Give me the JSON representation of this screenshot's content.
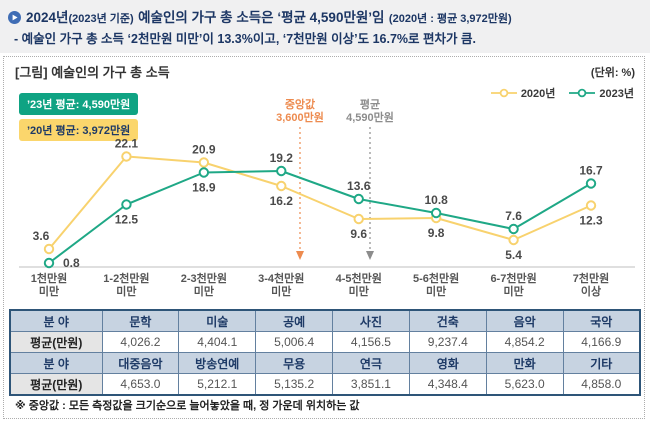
{
  "header": {
    "line1_lead": "2024년",
    "line1_sub": "(2023년 기준)",
    "line1_main": "예술인의 가구 총 소득은 ‘평균 4,590만원’임",
    "line1_paren": "(2020년 : 평균 3,972만원)",
    "line2": "- 예술인 가구 총 소득 ‘2천만원 미만’이 13.3%이고, ‘7천만원 이상’도 16.7%로 편차가 큼."
  },
  "figure": {
    "title": "[그림] 예술인의 가구 총 소득",
    "unit": "(단위: %)",
    "badge_2023": "’23년 평균: 4,590만원",
    "badge_2020": "’20년 평균: 3,972만원"
  },
  "chart_data": {
    "type": "line",
    "title": "[그림] 예술인의 가구 총 소득",
    "unit": "%",
    "xlabel": "",
    "ylabel": "",
    "ylim": [
      0,
      25
    ],
    "grid": false,
    "legend_position": "top-right",
    "categories": [
      "1천만원 미만",
      "1-2천만원 미만",
      "2-3천만원 미만",
      "3-4천만원 미만",
      "4-5천만원 미만",
      "5-6천만원 미만",
      "6-7천만원 미만",
      "7천만원 이상"
    ],
    "series": [
      {
        "name": "2020년",
        "color": "#F8D26E",
        "values": [
          3.6,
          22.1,
          20.9,
          16.2,
          9.6,
          9.8,
          5.4,
          12.3
        ]
      },
      {
        "name": "2023년",
        "color": "#1FA886",
        "values": [
          0.8,
          12.5,
          18.9,
          19.2,
          13.6,
          10.8,
          7.6,
          16.7
        ]
      }
    ],
    "annotations": [
      {
        "label": "중앙값",
        "value_label": "3,600만원",
        "color": "#ED8B4F"
      },
      {
        "label": "평균",
        "value_label": "4,590만원",
        "color": "#8C8C8C"
      }
    ]
  },
  "table": {
    "rows": [
      {
        "type": "head",
        "header": "분 야",
        "cells": [
          "문학",
          "미술",
          "공예",
          "사진",
          "건축",
          "음악",
          "국악"
        ]
      },
      {
        "type": "value",
        "header": "평균(만원)",
        "cells": [
          "4,026.2",
          "4,404.1",
          "5,006.4",
          "4,156.5",
          "9,237.4",
          "4,854.2",
          "4,166.9"
        ]
      },
      {
        "type": "head",
        "header": "분 야",
        "cells": [
          "대중음악",
          "방송연예",
          "무용",
          "연극",
          "영화",
          "만화",
          "기타"
        ]
      },
      {
        "type": "value",
        "header": "평균(만원)",
        "cells": [
          "4,653.0",
          "5,212.1",
          "5,135.2",
          "3,851.1",
          "4,348.4",
          "5,623.0",
          "4,858.0"
        ]
      }
    ]
  },
  "footnote": "※ 중앙값 : 모든 측정값을 크기순으로 늘어놓았을 때, 정 가운데 위치하는 값"
}
